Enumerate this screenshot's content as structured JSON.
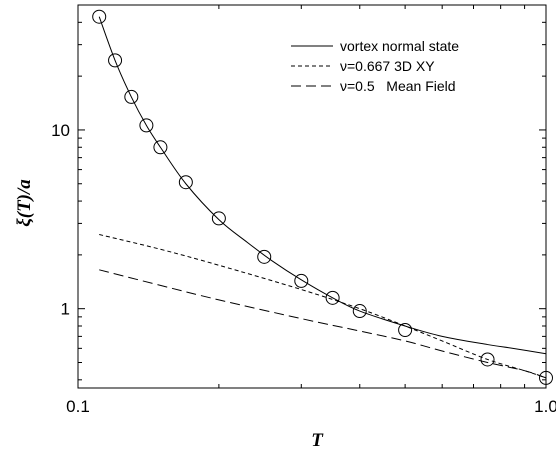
{
  "chart_data": {
    "type": "line",
    "title": "",
    "xlabel": "T",
    "ylabel": "ξ(T)/a",
    "x_scale": "log",
    "y_scale": "log",
    "xlim": [
      0.1,
      1.0
    ],
    "ylim": [
      0.36,
      50
    ],
    "grid": false,
    "legend_position": "top-right",
    "x_ticks": [
      {
        "value": 0.1,
        "label": "0.1"
      },
      {
        "value": 1.0,
        "label": "1.0"
      }
    ],
    "y_ticks": [
      {
        "value": 1,
        "label": "1"
      },
      {
        "value": 10,
        "label": "10"
      }
    ],
    "series": [
      {
        "name": "vortex normal state",
        "style": "solid",
        "x": [
          0.111,
          0.12,
          0.13,
          0.14,
          0.15,
          0.17,
          0.2,
          0.23,
          0.26,
          0.3,
          0.35,
          0.4,
          0.5,
          0.6,
          0.75,
          0.85,
          1.0
        ],
        "y": [
          43,
          24.5,
          15.3,
          10.6,
          8.0,
          5.0,
          3.15,
          2.35,
          1.85,
          1.45,
          1.15,
          0.97,
          0.8,
          0.7,
          0.63,
          0.6,
          0.56
        ]
      },
      {
        "name": "ν=0.667 3D XY",
        "style": "short-dash",
        "x": [
          0.111,
          0.15,
          0.2,
          0.3,
          0.4,
          0.5,
          0.6,
          0.75,
          0.9,
          1.0
        ],
        "y": [
          2.6,
          2.15,
          1.75,
          1.28,
          1.0,
          0.8,
          0.66,
          0.52,
          0.45,
          0.41
        ]
      },
      {
        "name": "ν=0.5   Mean Field",
        "style": "long-dash",
        "x": [
          0.111,
          0.15,
          0.2,
          0.3,
          0.4,
          0.5,
          0.6,
          0.75,
          0.9,
          1.0
        ],
        "y": [
          1.65,
          1.35,
          1.12,
          0.88,
          0.75,
          0.66,
          0.58,
          0.5,
          0.45,
          0.41
        ]
      },
      {
        "name": "",
        "style": "circles",
        "x": [
          0.111,
          0.12,
          0.13,
          0.14,
          0.15,
          0.17,
          0.2,
          0.25,
          0.3,
          0.35,
          0.4,
          0.5,
          0.75,
          1.0
        ],
        "y": [
          43,
          24.5,
          15.3,
          10.6,
          8.0,
          5.1,
          3.2,
          1.95,
          1.43,
          1.15,
          0.97,
          0.76,
          0.52,
          0.41
        ]
      }
    ]
  }
}
